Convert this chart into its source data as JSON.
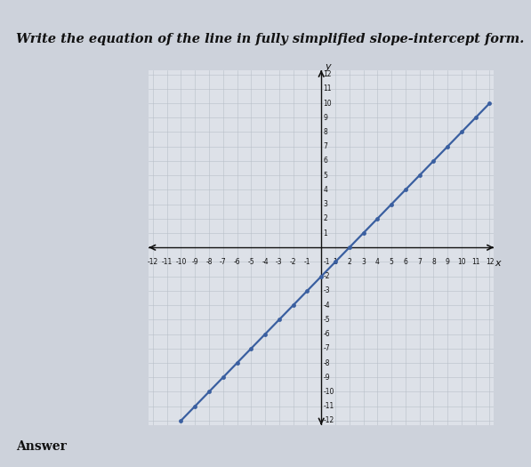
{
  "title": "Write the equation of the line in fully simplified slope-intercept form.",
  "slope": 1,
  "intercept": -2,
  "x_range": [
    -12,
    12
  ],
  "y_range": [
    -12,
    12
  ],
  "line_color": "#3a5fa0",
  "line_width": 1.6,
  "grid_color": "#b8bfc8",
  "grid_linewidth": 0.4,
  "axis_color": "#111111",
  "background_color": "#cdd2db",
  "plot_bg_color": "#dde1e8",
  "answer_label": "Answer",
  "xlabel": "x",
  "ylabel": "y",
  "line_x_start": -10.5,
  "line_x_end": 12,
  "title_fontsize": 10.5,
  "tick_fontsize": 5.5
}
